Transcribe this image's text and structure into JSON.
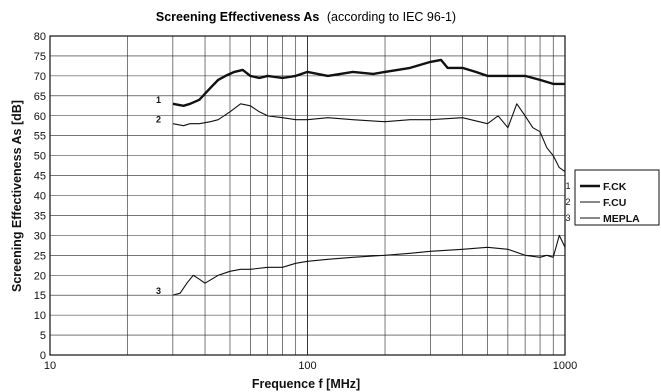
{
  "chart_data": {
    "type": "line",
    "title_main": "Screening Effectiveness As",
    "title_note": "(according to IEC 96-1)",
    "xlabel": "Frequence f [MHz]",
    "ylabel": "Screening Effectiveness As [dB]",
    "x_scale": "log",
    "xlim": [
      10,
      1000
    ],
    "ylim": [
      0,
      80
    ],
    "x_ticks": [
      "10",
      "100",
      "1000"
    ],
    "y_ticks": [
      "0",
      "5",
      "10",
      "15",
      "20",
      "25",
      "30",
      "35",
      "40",
      "45",
      "50",
      "55",
      "60",
      "65",
      "70",
      "75",
      "80"
    ],
    "grid": true,
    "legend_position": "right",
    "series": [
      {
        "num": "1",
        "name": "F.CK",
        "color": "#111111",
        "x": [
          30,
          33,
          35,
          38,
          42,
          45,
          48,
          52,
          56,
          60,
          65,
          70,
          80,
          90,
          100,
          120,
          150,
          180,
          200,
          250,
          300,
          330,
          350,
          400,
          450,
          500,
          600,
          700,
          800,
          900,
          1000
        ],
        "y": [
          63,
          62.5,
          63,
          64,
          67,
          69,
          70,
          71,
          71.5,
          70,
          69.5,
          70,
          69.5,
          70,
          71,
          70,
          71,
          70.5,
          71,
          72,
          73.5,
          74,
          72,
          72,
          71,
          70,
          70,
          70,
          69,
          68,
          68
        ]
      },
      {
        "num": "2",
        "name": "F.CU",
        "color": "#111111",
        "x": [
          30,
          33,
          35,
          38,
          42,
          45,
          50,
          55,
          60,
          65,
          70,
          80,
          90,
          100,
          120,
          150,
          200,
          250,
          300,
          400,
          500,
          550,
          600,
          650,
          700,
          750,
          800,
          850,
          900,
          950,
          1000
        ],
        "y": [
          58,
          57.5,
          58,
          58,
          58.5,
          59,
          61,
          63,
          62.5,
          61,
          60,
          59.5,
          59,
          59,
          59.5,
          59,
          58.5,
          59,
          59,
          59.5,
          58,
          60,
          57,
          63,
          60,
          57,
          56,
          52,
          50,
          47,
          46
        ]
      },
      {
        "num": "3",
        "name": "MEPLA",
        "color": "#111111",
        "x": [
          30,
          32,
          34,
          36,
          38,
          40,
          45,
          50,
          55,
          60,
          70,
          80,
          90,
          100,
          120,
          150,
          200,
          250,
          300,
          400,
          500,
          600,
          700,
          800,
          850,
          900,
          950,
          1000
        ],
        "y": [
          15,
          15.5,
          18,
          20,
          19,
          18,
          20,
          21,
          21.5,
          21.5,
          22,
          22,
          23,
          23.5,
          24,
          24.5,
          25,
          25.5,
          26,
          26.5,
          27,
          26.5,
          25,
          24.5,
          25,
          24.5,
          30,
          27
        ]
      }
    ],
    "curve_labels": [
      {
        "text": "1",
        "x": 27,
        "y": 64
      },
      {
        "text": "2",
        "x": 27,
        "y": 59
      },
      {
        "text": "3",
        "x": 27,
        "y": 16
      }
    ]
  }
}
